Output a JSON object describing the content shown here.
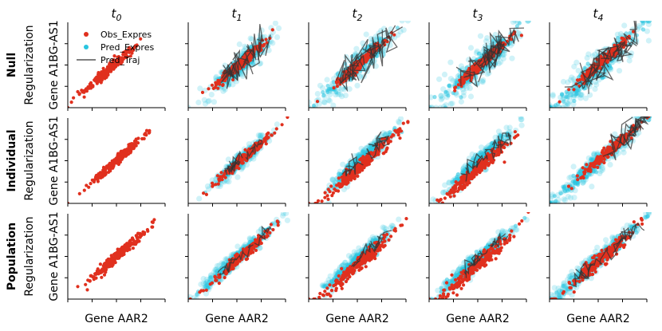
{
  "chart_data": {
    "type": "scatter",
    "layout": {
      "rows": 3,
      "cols": 5
    },
    "titles": [
      "t0",
      "t1",
      "t2",
      "t3",
      "t4"
    ],
    "title_base": "t",
    "title_subscripts": [
      "0",
      "1",
      "2",
      "3",
      "4"
    ],
    "xlabel": "Gene AAR2",
    "ylabel": "Gene A1BG-AS1",
    "row_labels": [
      {
        "bold": "Null",
        "sub": "Regularization"
      },
      {
        "bold": "Individual",
        "sub": "Regularization"
      },
      {
        "bold": "Population",
        "sub": "Regularization"
      }
    ],
    "legend": {
      "entries": [
        {
          "label": "Obs_Expres",
          "kind": "point",
          "color": "#e0301e"
        },
        {
          "label": "Pred_Expres",
          "kind": "point",
          "color": "#29c5e0"
        },
        {
          "label": "Pred_Traj",
          "kind": "line",
          "color": "#555555"
        }
      ],
      "location": "upper-left of first panel"
    },
    "xlim": [
      0,
      1
    ],
    "ylim": [
      0,
      1
    ],
    "grid": false,
    "colors": {
      "obs": "#e0301e",
      "pred": "#29c5e0",
      "traj": "#333333"
    },
    "panels": [
      [
        {
          "obs": {
            "center": [
              0.44,
              0.46
            ],
            "spread": 0.24,
            "noise": 0.028
          },
          "pred": null,
          "traj": null
        },
        {
          "obs": {
            "center": [
              0.55,
              0.53
            ],
            "spread": 0.22,
            "noise": 0.03
          },
          "pred": {
            "center": [
              0.55,
              0.52
            ],
            "spread": 0.26,
            "noise": 0.075
          },
          "traj": {
            "count": 9,
            "noise": 0.09
          }
        },
        {
          "obs": {
            "center": [
              0.52,
              0.52
            ],
            "spread": 0.22,
            "noise": 0.03
          },
          "pred": {
            "center": [
              0.52,
              0.52
            ],
            "spread": 0.32,
            "noise": 0.09
          },
          "traj": {
            "count": 10,
            "noise": 0.1
          }
        },
        {
          "obs": {
            "center": [
              0.55,
              0.53
            ],
            "spread": 0.22,
            "noise": 0.03
          },
          "pred": {
            "center": [
              0.52,
              0.5
            ],
            "spread": 0.36,
            "noise": 0.1
          },
          "traj": {
            "count": 10,
            "noise": 0.1
          }
        },
        {
          "obs": {
            "center": [
              0.55,
              0.55
            ],
            "spread": 0.22,
            "noise": 0.03
          },
          "pred": {
            "center": [
              0.48,
              0.45
            ],
            "spread": 0.42,
            "noise": 0.1
          },
          "traj": {
            "count": 10,
            "noise": 0.1
          }
        }
      ],
      [
        {
          "obs": {
            "center": [
              0.52,
              0.52
            ],
            "spread": 0.24,
            "noise": 0.03
          },
          "pred": null,
          "traj": null
        },
        {
          "obs": {
            "center": [
              0.58,
              0.54
            ],
            "spread": 0.24,
            "noise": 0.025
          },
          "pred": {
            "center": [
              0.55,
              0.52
            ],
            "spread": 0.24,
            "noise": 0.05
          },
          "traj": {
            "count": 7,
            "noise": 0.04
          }
        },
        {
          "obs": {
            "center": [
              0.55,
              0.46
            ],
            "spread": 0.3,
            "noise": 0.04
          },
          "pred": {
            "center": [
              0.55,
              0.52
            ],
            "spread": 0.28,
            "noise": 0.055
          },
          "traj": {
            "count": 7,
            "noise": 0.045
          }
        },
        {
          "obs": {
            "center": [
              0.52,
              0.42
            ],
            "spread": 0.3,
            "noise": 0.04
          },
          "pred": {
            "center": [
              0.52,
              0.5
            ],
            "spread": 0.3,
            "noise": 0.06
          },
          "traj": {
            "count": 7,
            "noise": 0.05
          }
        },
        {
          "obs": {
            "center": [
              0.62,
              0.62
            ],
            "spread": 0.24,
            "noise": 0.03
          },
          "pred": {
            "center": [
              0.52,
              0.52
            ],
            "spread": 0.48,
            "noise": 0.07
          },
          "traj": {
            "count": 9,
            "noise": 0.06
          }
        }
      ],
      [
        {
          "obs": {
            "center": [
              0.52,
              0.52
            ],
            "spread": 0.26,
            "noise": 0.03
          },
          "pred": null,
          "traj": null
        },
        {
          "obs": {
            "center": [
              0.55,
              0.5
            ],
            "spread": 0.26,
            "noise": 0.03
          },
          "pred": {
            "center": [
              0.5,
              0.48
            ],
            "spread": 0.32,
            "noise": 0.05
          },
          "traj": {
            "count": 5,
            "noise": 0.035
          }
        },
        {
          "obs": {
            "center": [
              0.52,
              0.42
            ],
            "spread": 0.32,
            "noise": 0.045
          },
          "pred": {
            "center": [
              0.5,
              0.46
            ],
            "spread": 0.3,
            "noise": 0.05
          },
          "traj": {
            "count": 5,
            "noise": 0.035
          }
        },
        {
          "obs": {
            "center": [
              0.5,
              0.4
            ],
            "spread": 0.32,
            "noise": 0.045
          },
          "pred": {
            "center": [
              0.48,
              0.45
            ],
            "spread": 0.32,
            "noise": 0.05
          },
          "traj": {
            "count": 6,
            "noise": 0.04
          }
        },
        {
          "obs": {
            "center": [
              0.52,
              0.46
            ],
            "spread": 0.3,
            "noise": 0.04
          },
          "pred": {
            "center": [
              0.48,
              0.44
            ],
            "spread": 0.4,
            "noise": 0.06
          },
          "traj": {
            "count": 8,
            "noise": 0.05
          }
        }
      ]
    ]
  }
}
